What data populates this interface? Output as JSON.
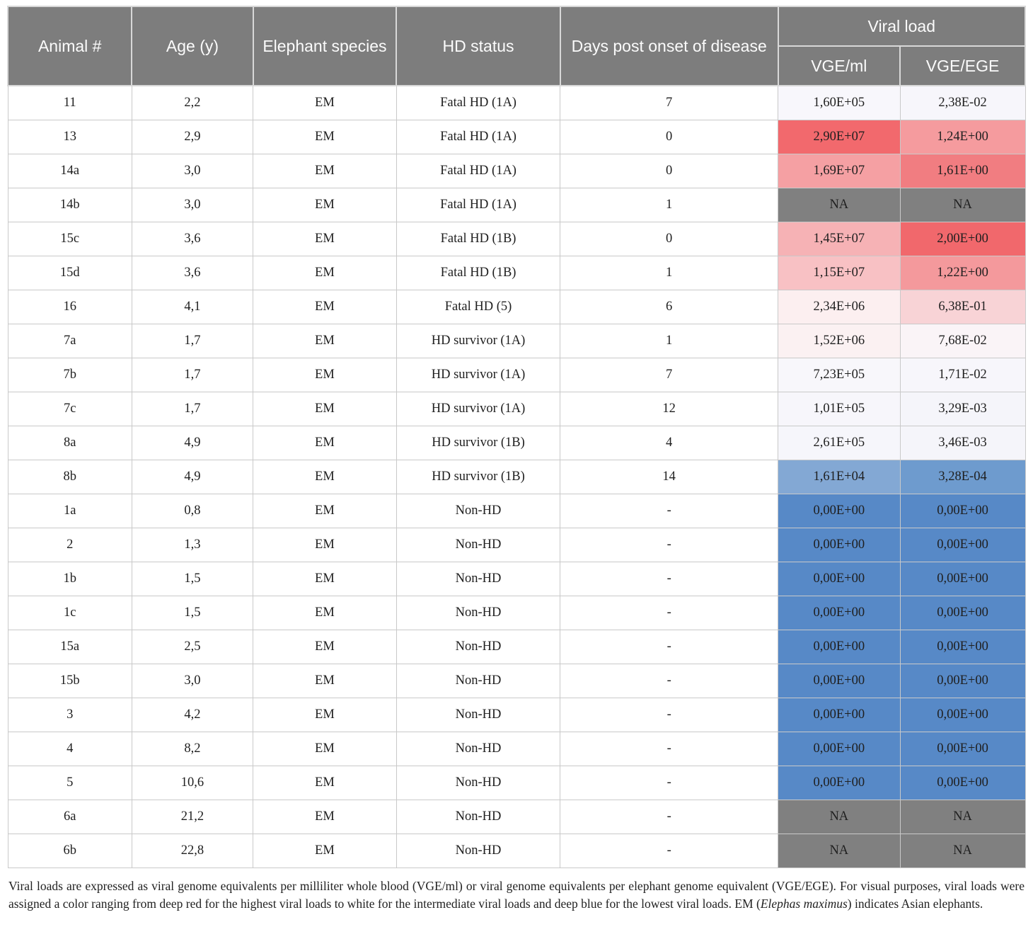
{
  "table": {
    "columns": [
      "Animal #",
      "Age (y)",
      "Elephant species",
      "HD status",
      "Days post onset of disease"
    ],
    "viral_load_header": "Viral load",
    "viral_sub_columns": [
      "VGE/ml",
      "VGE/EGE"
    ],
    "rows": [
      {
        "animal": "11",
        "age": "2,2",
        "species": "EM",
        "status": "Fatal HD (1A)",
        "days": "7",
        "vge_ml": "1,60E+05",
        "vge_ege": "2,38E-02",
        "ml_bg": "#f8f7fc",
        "ege_bg": "#f7f6fb"
      },
      {
        "animal": "13",
        "age": "2,9",
        "species": "EM",
        "status": "Fatal HD (1A)",
        "days": "0",
        "vge_ml": "2,90E+07",
        "vge_ege": "1,24E+00",
        "ml_bg": "#f2696d",
        "ege_bg": "#f59b9e"
      },
      {
        "animal": "14a",
        "age": "3,0",
        "species": "EM",
        "status": "Fatal HD (1A)",
        "days": "0",
        "vge_ml": "1,69E+07",
        "vge_ege": "1,61E+00",
        "ml_bg": "#f5a0a3",
        "ege_bg": "#f17d81"
      },
      {
        "animal": "14b",
        "age": "3,0",
        "species": "EM",
        "status": "Fatal HD (1A)",
        "days": "1",
        "vge_ml": "NA",
        "vge_ege": "NA",
        "ml_bg": "#808080",
        "ege_bg": "#808080"
      },
      {
        "animal": "15c",
        "age": "3,6",
        "species": "EM",
        "status": "Fatal HD (1B)",
        "days": "0",
        "vge_ml": "1,45E+07",
        "vge_ege": "2,00E+00",
        "ml_bg": "#f6b2b5",
        "ege_bg": "#f1686c"
      },
      {
        "animal": "15d",
        "age": "3,6",
        "species": "EM",
        "status": "Fatal HD (1B)",
        "days": "1",
        "vge_ml": "1,15E+07",
        "vge_ege": "1,22E+00",
        "ml_bg": "#f8c1c4",
        "ege_bg": "#f4999c"
      },
      {
        "animal": "16",
        "age": "4,1",
        "species": "EM",
        "status": "Fatal HD (5)",
        "days": "6",
        "vge_ml": "2,34E+06",
        "vge_ege": "6,38E-01",
        "ml_bg": "#fceff0",
        "ege_bg": "#f8d3d6"
      },
      {
        "animal": "7a",
        "age": "1,7",
        "species": "EM",
        "status": "HD survivor (1A)",
        "days": "1",
        "vge_ml": "1,52E+06",
        "vge_ege": "7,68E-02",
        "ml_bg": "#fbf1f2",
        "ege_bg": "#faf4f7"
      },
      {
        "animal": "7b",
        "age": "1,7",
        "species": "EM",
        "status": "HD survivor (1A)",
        "days": "7",
        "vge_ml": "7,23E+05",
        "vge_ege": "1,71E-02",
        "ml_bg": "#f8f7fb",
        "ege_bg": "#f7f6fb"
      },
      {
        "animal": "7c",
        "age": "1,7",
        "species": "EM",
        "status": "HD survivor (1A)",
        "days": "12",
        "vge_ml": "1,01E+05",
        "vge_ege": "3,29E-03",
        "ml_bg": "#f7f6fb",
        "ege_bg": "#f5f5fa"
      },
      {
        "animal": "8a",
        "age": "4,9",
        "species": "EM",
        "status": "HD survivor (1B)",
        "days": "4",
        "vge_ml": "2,61E+05",
        "vge_ege": "3,46E-03",
        "ml_bg": "#f6f6fb",
        "ege_bg": "#f5f5fa"
      },
      {
        "animal": "8b",
        "age": "4,9",
        "species": "EM",
        "status": "HD survivor (1B)",
        "days": "14",
        "vge_ml": "1,61E+04",
        "vge_ege": "3,28E-04",
        "ml_bg": "#83a8d4",
        "ege_bg": "#6e9bce"
      },
      {
        "animal": "1a",
        "age": "0,8",
        "species": "EM",
        "status": "Non-HD",
        "days": "-",
        "vge_ml": "0,00E+00",
        "vge_ege": "0,00E+00",
        "ml_bg": "#5789c7",
        "ege_bg": "#5789c7"
      },
      {
        "animal": "2",
        "age": "1,3",
        "species": "EM",
        "status": "Non-HD",
        "days": "-",
        "vge_ml": "0,00E+00",
        "vge_ege": "0,00E+00",
        "ml_bg": "#5789c7",
        "ege_bg": "#5789c7"
      },
      {
        "animal": "1b",
        "age": "1,5",
        "species": "EM",
        "status": "Non-HD",
        "days": "-",
        "vge_ml": "0,00E+00",
        "vge_ege": "0,00E+00",
        "ml_bg": "#5789c7",
        "ege_bg": "#5789c7"
      },
      {
        "animal": "1c",
        "age": "1,5",
        "species": "EM",
        "status": "Non-HD",
        "days": "-",
        "vge_ml": "0,00E+00",
        "vge_ege": "0,00E+00",
        "ml_bg": "#5789c7",
        "ege_bg": "#5789c7"
      },
      {
        "animal": "15a",
        "age": "2,5",
        "species": "EM",
        "status": "Non-HD",
        "days": "-",
        "vge_ml": "0,00E+00",
        "vge_ege": "0,00E+00",
        "ml_bg": "#5789c7",
        "ege_bg": "#5789c7"
      },
      {
        "animal": "15b",
        "age": "3,0",
        "species": "EM",
        "status": "Non-HD",
        "days": "-",
        "vge_ml": "0,00E+00",
        "vge_ege": "0,00E+00",
        "ml_bg": "#5789c7",
        "ege_bg": "#5789c7"
      },
      {
        "animal": "3",
        "age": "4,2",
        "species": "EM",
        "status": "Non-HD",
        "days": "-",
        "vge_ml": "0,00E+00",
        "vge_ege": "0,00E+00",
        "ml_bg": "#5789c7",
        "ege_bg": "#5789c7"
      },
      {
        "animal": "4",
        "age": "8,2",
        "species": "EM",
        "status": "Non-HD",
        "days": "-",
        "vge_ml": "0,00E+00",
        "vge_ege": "0,00E+00",
        "ml_bg": "#5789c7",
        "ege_bg": "#5789c7"
      },
      {
        "animal": "5",
        "age": "10,6",
        "species": "EM",
        "status": "Non-HD",
        "days": "-",
        "vge_ml": "0,00E+00",
        "vge_ege": "0,00E+00",
        "ml_bg": "#5789c7",
        "ege_bg": "#5789c7"
      },
      {
        "animal": "6a",
        "age": "21,2",
        "species": "EM",
        "status": "Non-HD",
        "days": "-",
        "vge_ml": "NA",
        "vge_ege": "NA",
        "ml_bg": "#808080",
        "ege_bg": "#808080"
      },
      {
        "animal": "6b",
        "age": "22,8",
        "species": "EM",
        "status": "Non-HD",
        "days": "-",
        "vge_ml": "NA",
        "vge_ege": "NA",
        "ml_bg": "#808080",
        "ege_bg": "#808080"
      }
    ]
  },
  "footnote": {
    "part1": "Viral loads are expressed as viral genome equivalents per milliliter whole blood (VGE/ml) or viral genome equivalents per elephant genome equivalent (VGE/EGE). For visual purposes, viral loads were assigned a color ranging from deep red for the highest viral loads to white for the intermediate viral loads and deep blue for the lowest viral loads. EM (",
    "italic": "Elephas maximus",
    "part2": ") indicates Asian elephants."
  },
  "colors": {
    "header_bg": "#7d7d7d",
    "header_text": "#fbfbfb",
    "na_bg": "#808080",
    "zero_bg": "#5789c7",
    "max_red": "#f2696d",
    "grid_line": "#c9c9c9"
  }
}
